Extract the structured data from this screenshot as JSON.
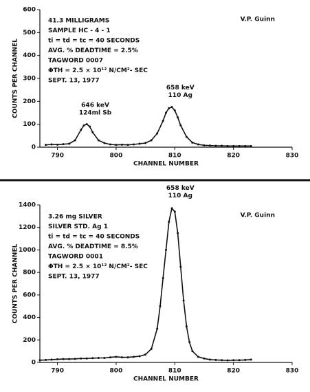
{
  "chart_data": [
    {
      "type": "line",
      "ylabel": "COUNTS PER CHANNEL",
      "xlabel": "CHANNEL NUMBER",
      "author": "V.P. Guinn",
      "notes": [
        "41.3 MILLIGRAMS",
        "SAMPLE HC - 4 - 1",
        "ti = td = tc = 40 SECONDS",
        "AVG. % DEADTIME = 2.5%",
        "TAGWORD 0007",
        "ΦTH = 2.5 × 10¹² N/CM²- SEC",
        "SEPT. 13, 1977"
      ],
      "annotations": [
        [
          "646 keV",
          "124ml Sb"
        ],
        [
          "658 keV",
          "110 Ag"
        ]
      ],
      "xlim": [
        787,
        830
      ],
      "xticks": [
        790,
        800,
        810,
        820,
        830
      ],
      "ylim": [
        0,
        600
      ],
      "yticks": [
        0,
        100,
        200,
        300,
        400,
        500,
        600
      ],
      "series": [
        {
          "color": "#111111",
          "x": [
            788,
            789,
            790,
            791,
            792,
            793,
            794,
            794.5,
            795,
            795.5,
            796,
            797,
            798,
            799,
            800,
            801,
            802,
            803,
            804,
            805,
            806,
            807,
            808,
            808.5,
            809,
            809.5,
            810,
            810.5,
            811,
            812,
            813,
            814,
            815,
            816,
            817,
            818,
            819,
            820,
            821,
            822,
            823
          ],
          "values": [
            10,
            12,
            11,
            13,
            15,
            30,
            75,
            95,
            100,
            90,
            65,
            30,
            18,
            12,
            10,
            11,
            10,
            12,
            15,
            18,
            30,
            60,
            115,
            150,
            170,
            175,
            160,
            130,
            95,
            45,
            20,
            12,
            8,
            7,
            6,
            6,
            5,
            5,
            5,
            5,
            5
          ]
        }
      ]
    },
    {
      "type": "line",
      "ylabel": "COUNTS PER CHANNEL",
      "xlabel": "CHANNEL NUMBER",
      "author": "V.P. Guinn",
      "notes": [
        "3.26 mg SILVER",
        "SILVER STD. Ag 1",
        "ti = td = tc = 40 SECONDS",
        "AVG. % DEADTIME = 8.5%",
        "TAGWORD 0001",
        "ΦTH = 2.5 × 10¹² N/CM²- SEC",
        "SEPT. 13, 1977"
      ],
      "annotations": [
        [
          "658 keV",
          "110 Ag"
        ]
      ],
      "xlim": [
        787,
        830
      ],
      "xticks": [
        790,
        800,
        810,
        820,
        830
      ],
      "ylim": [
        0,
        1400
      ],
      "yticks": [
        0,
        200,
        400,
        600,
        800,
        1000,
        1200,
        1400
      ],
      "series": [
        {
          "color": "#111111",
          "x": [
            787,
            788,
            789,
            790,
            791,
            792,
            793,
            794,
            795,
            796,
            797,
            798,
            799,
            800,
            801,
            802,
            803,
            804,
            805,
            806,
            807,
            807.5,
            808,
            808.5,
            809,
            809.5,
            810,
            810.5,
            811,
            811.5,
            812,
            812.5,
            813,
            814,
            815,
            816,
            817,
            818,
            819,
            820,
            821,
            822,
            823
          ],
          "values": [
            20,
            22,
            25,
            28,
            30,
            30,
            32,
            35,
            35,
            38,
            40,
            40,
            45,
            50,
            45,
            45,
            50,
            55,
            70,
            120,
            300,
            500,
            750,
            1000,
            1250,
            1370,
            1340,
            1150,
            850,
            550,
            320,
            180,
            100,
            50,
            35,
            25,
            22,
            20,
            18,
            20,
            20,
            22,
            25
          ]
        }
      ]
    }
  ]
}
